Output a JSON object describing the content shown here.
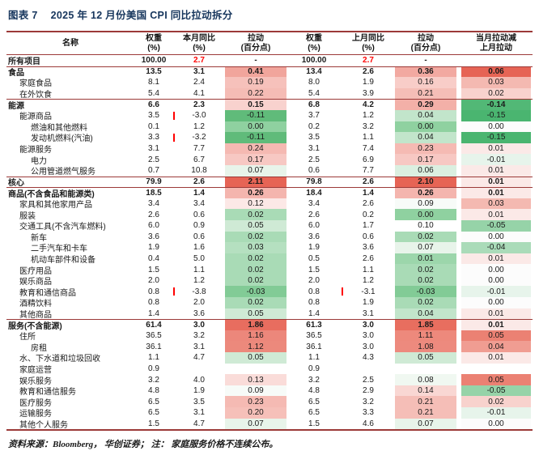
{
  "title": {
    "label": "图表 7",
    "text": "2025 年 12 月份美国 CPI 同比拉动拆分"
  },
  "colors": {
    "title_navy": "#17365D",
    "rule_maroon": "#9C3A38",
    "highlight_red": "#FF0000",
    "scale_green_max": "#4FB36C",
    "scale_red_max": "#E66455"
  },
  "table": {
    "headers": [
      {
        "l1": "名称",
        "l2": ""
      },
      {
        "l1": "权重",
        "l2": "(%)"
      },
      {
        "l1": "本月同比",
        "l2": "(%)"
      },
      {
        "l1": "拉动",
        "l2": "(百分点)"
      },
      {
        "l1": "权重",
        "l2": "(%)"
      },
      {
        "l1": "上月同比",
        "l2": "(%)"
      },
      {
        "l1": "拉动",
        "l2": "(百分点)"
      },
      {
        "l1": "当月拉动减",
        "l2": "上月拉动"
      }
    ],
    "rows": [
      {
        "name": "所有项目",
        "indent": 0,
        "bold": true,
        "red_yoy": true,
        "w1": "100.00",
        "yoy1": "2.7",
        "pull1": "-",
        "w2": "100.00",
        "yoy2": "2.7",
        "pull2": "-",
        "diff": ""
      },
      {
        "name": "食品",
        "indent": 0,
        "bold": true,
        "rule": true,
        "w1": "13.5",
        "yoy1": "3.1",
        "pull1": "0.41",
        "w2": "13.4",
        "yoy2": "2.6",
        "pull2": "0.36",
        "diff": "0.06"
      },
      {
        "name": "家庭食品",
        "indent": 1,
        "w1": "8.1",
        "yoy1": "2.4",
        "pull1": "0.19",
        "w2": "8.0",
        "yoy2": "1.9",
        "pull2": "0.16",
        "diff": "0.03"
      },
      {
        "name": "在外饮食",
        "indent": 1,
        "w1": "5.4",
        "yoy1": "4.1",
        "pull1": "0.22",
        "w2": "5.4",
        "yoy2": "3.9",
        "pull2": "0.21",
        "diff": "0.02"
      },
      {
        "name": "能源",
        "indent": 0,
        "bold": true,
        "rule": true,
        "w1": "6.6",
        "yoy1": "2.3",
        "pull1": "0.15",
        "w2": "6.8",
        "yoy2": "4.2",
        "pull2": "0.29",
        "diff": "-0.14"
      },
      {
        "name": "能源商品",
        "indent": 1,
        "w1": "3.5",
        "yoy1": "-3.0",
        "pull1": "-0.11",
        "w2": "3.7",
        "yoy2": "1.2",
        "pull2": "0.04",
        "diff": "-0.15"
      },
      {
        "name": "燃油和其他燃料",
        "indent": 2,
        "w1": "0.1",
        "yoy1": "1.2",
        "pull1": "0.00",
        "w2": "0.2",
        "yoy2": "3.2",
        "pull2": "0.00",
        "diff": "0.00"
      },
      {
        "name": "发动机燃料(汽油)",
        "indent": 2,
        "w1": "3.3",
        "yoy1": "-3.2",
        "pull1": "-0.11",
        "w2": "3.5",
        "yoy2": "1.1",
        "pull2": "0.04",
        "diff": "-0.15"
      },
      {
        "name": "能源服务",
        "indent": 1,
        "w1": "3.1",
        "yoy1": "7.7",
        "pull1": "0.24",
        "w2": "3.1",
        "yoy2": "7.4",
        "pull2": "0.23",
        "diff": "0.01"
      },
      {
        "name": "电力",
        "indent": 2,
        "w1": "2.5",
        "yoy1": "6.7",
        "pull1": "0.17",
        "w2": "2.5",
        "yoy2": "6.9",
        "pull2": "0.17",
        "diff": "-0.01"
      },
      {
        "name": "公用管道燃气服务",
        "indent": 2,
        "w1": "0.7",
        "yoy1": "10.8",
        "pull1": "0.07",
        "w2": "0.6",
        "yoy2": "7.7",
        "pull2": "0.06",
        "diff": "0.01"
      },
      {
        "name": "核心",
        "indent": 0,
        "bold": true,
        "rule": true,
        "w1": "79.9",
        "yoy1": "2.6",
        "pull1": "2.11",
        "w2": "79.8",
        "yoy2": "2.6",
        "pull2": "2.10",
        "diff": "0.01"
      },
      {
        "name": "商品(不含食品和能源类)",
        "indent": 0,
        "bold": true,
        "rule": true,
        "w1": "18.5",
        "yoy1": "1.4",
        "pull1": "0.26",
        "w2": "18.4",
        "yoy2": "1.4",
        "pull2": "0.26",
        "diff": "0.01"
      },
      {
        "name": "家具和其他家用产品",
        "indent": 1,
        "w1": "3.4",
        "yoy1": "3.4",
        "pull1": "0.12",
        "w2": "3.4",
        "yoy2": "2.6",
        "pull2": "0.09",
        "diff": "0.03"
      },
      {
        "name": "服装",
        "indent": 1,
        "w1": "2.6",
        "yoy1": "0.6",
        "pull1": "0.02",
        "w2": "2.6",
        "yoy2": "0.2",
        "pull2": "0.00",
        "diff": "0.01"
      },
      {
        "name": "交通工具(不含汽车燃料)",
        "indent": 1,
        "w1": "6.0",
        "yoy1": "0.9",
        "pull1": "0.05",
        "w2": "6.0",
        "yoy2": "1.7",
        "pull2": "0.10",
        "diff": "-0.05"
      },
      {
        "name": "新车",
        "indent": 2,
        "w1": "3.6",
        "yoy1": "0.6",
        "pull1": "0.02",
        "w2": "3.6",
        "yoy2": "0.6",
        "pull2": "0.02",
        "diff": "0.00"
      },
      {
        "name": "二手汽车和卡车",
        "indent": 2,
        "w1": "1.9",
        "yoy1": "1.6",
        "pull1": "0.03",
        "w2": "1.9",
        "yoy2": "3.6",
        "pull2": "0.07",
        "diff": "-0.04"
      },
      {
        "name": "机动车部件和设备",
        "indent": 2,
        "w1": "0.4",
        "yoy1": "5.0",
        "pull1": "0.02",
        "w2": "0.5",
        "yoy2": "2.6",
        "pull2": "0.01",
        "diff": "0.01"
      },
      {
        "name": "医疗用品",
        "indent": 1,
        "w1": "1.5",
        "yoy1": "1.1",
        "pull1": "0.02",
        "w2": "1.5",
        "yoy2": "1.1",
        "pull2": "0.02",
        "diff": "0.00"
      },
      {
        "name": "娱乐商品",
        "indent": 1,
        "w1": "2.0",
        "yoy1": "1.2",
        "pull1": "0.02",
        "w2": "2.0",
        "yoy2": "1.2",
        "pull2": "0.02",
        "diff": "0.00"
      },
      {
        "name": "教育和通信商品",
        "indent": 1,
        "w1": "0.8",
        "yoy1": "-3.8",
        "pull1": "-0.03",
        "w2": "0.8",
        "yoy2": "-3.1",
        "pull2": "-0.03",
        "diff": "-0.01"
      },
      {
        "name": "酒精饮料",
        "indent": 1,
        "w1": "0.8",
        "yoy1": "2.0",
        "pull1": "0.02",
        "w2": "0.8",
        "yoy2": "1.9",
        "pull2": "0.02",
        "diff": "0.00"
      },
      {
        "name": "其他商品",
        "indent": 1,
        "w1": "1.4",
        "yoy1": "3.6",
        "pull1": "0.05",
        "w2": "1.4",
        "yoy2": "3.1",
        "pull2": "0.04",
        "diff": "0.01"
      },
      {
        "name": "服务(不含能源)",
        "indent": 0,
        "bold": true,
        "rule": true,
        "w1": "61.4",
        "yoy1": "3.0",
        "pull1": "1.86",
        "w2": "61.3",
        "yoy2": "3.0",
        "pull2": "1.85",
        "diff": "0.01"
      },
      {
        "name": "住所",
        "indent": 1,
        "w1": "36.5",
        "yoy1": "3.2",
        "pull1": "1.16",
        "w2": "36.5",
        "yoy2": "3.0",
        "pull2": "1.11",
        "diff": "0.05"
      },
      {
        "name": "房租",
        "indent": 2,
        "w1": "36.1",
        "yoy1": "3.1",
        "pull1": "1.12",
        "w2": "36.1",
        "yoy2": "3.0",
        "pull2": "1.08",
        "diff": "0.04"
      },
      {
        "name": "水、下水道和垃圾回收",
        "indent": 1,
        "w1": "1.1",
        "yoy1": "4.7",
        "pull1": "0.05",
        "w2": "1.1",
        "yoy2": "4.3",
        "pull2": "0.05",
        "diff": "0.01"
      },
      {
        "name": "家庭运营",
        "indent": 1,
        "w1": "0.9",
        "yoy1": "",
        "pull1": "",
        "w2": "0.9",
        "yoy2": "",
        "pull2": "",
        "diff": ""
      },
      {
        "name": "娱乐服务",
        "indent": 1,
        "w1": "3.2",
        "yoy1": "4.0",
        "pull1": "0.13",
        "w2": "3.2",
        "yoy2": "2.5",
        "pull2": "0.08",
        "diff": "0.05"
      },
      {
        "name": "教育和通信服务",
        "indent": 1,
        "w1": "4.8",
        "yoy1": "1.9",
        "pull1": "0.09",
        "w2": "4.8",
        "yoy2": "2.9",
        "pull2": "0.14",
        "diff": "-0.05"
      },
      {
        "name": "医疗服务",
        "indent": 1,
        "w1": "6.5",
        "yoy1": "3.5",
        "pull1": "0.23",
        "w2": "6.5",
        "yoy2": "3.2",
        "pull2": "0.21",
        "diff": "0.02"
      },
      {
        "name": "运输服务",
        "indent": 1,
        "w1": "6.5",
        "yoy1": "3.1",
        "pull1": "0.20",
        "w2": "6.5",
        "yoy2": "3.3",
        "pull2": "0.21",
        "diff": "-0.01"
      },
      {
        "name": "其他个人服务",
        "indent": 1,
        "w1": "1.5",
        "yoy1": "4.7",
        "pull1": "0.07",
        "w2": "1.5",
        "yoy2": "4.6",
        "pull2": "0.07",
        "diff": "0.00"
      }
    ]
  },
  "footer": {
    "text": "资料来源：Bloomberg， 华创证券； 注： 家庭服务价格不连续公布。"
  }
}
